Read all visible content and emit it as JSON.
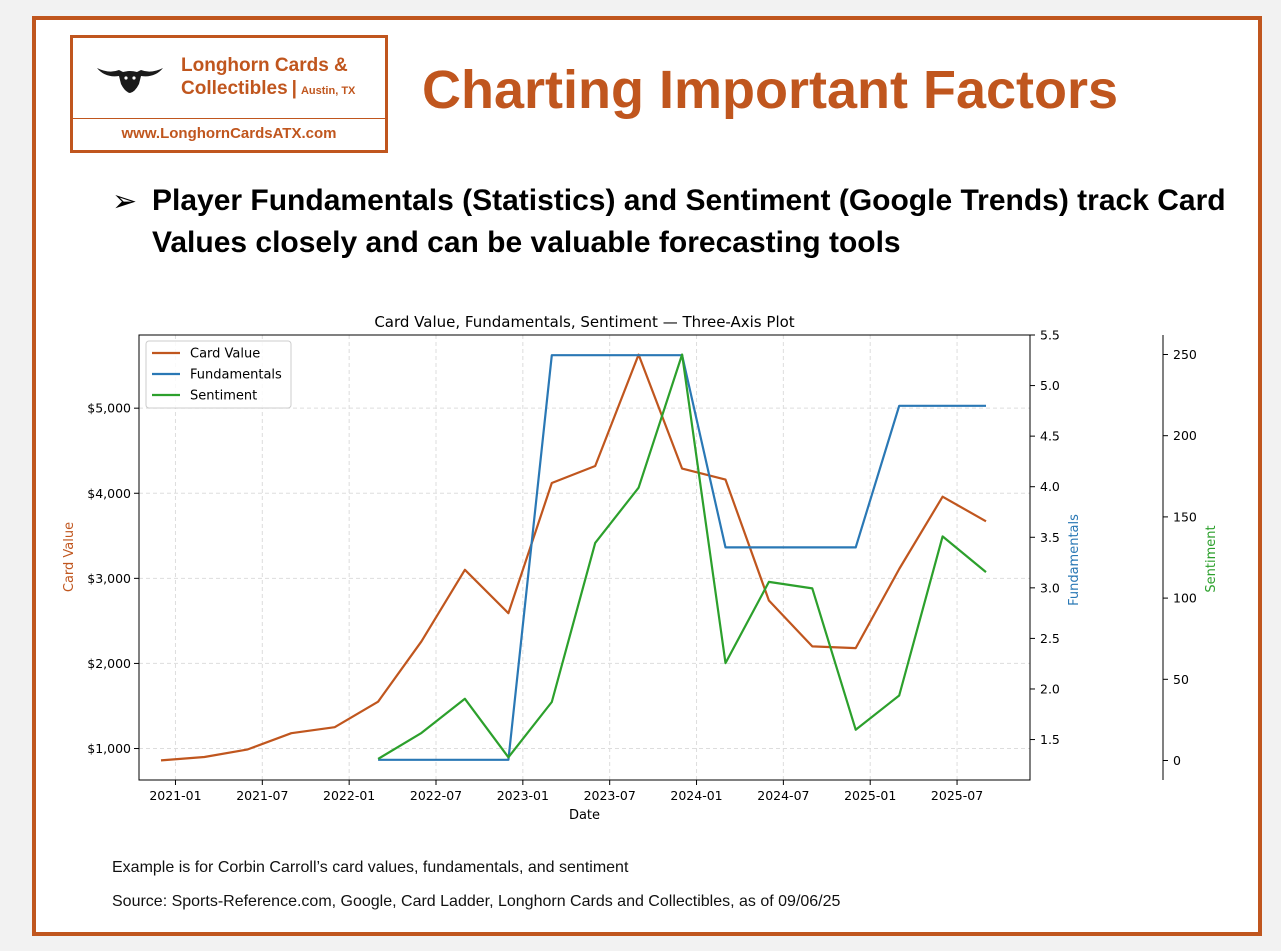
{
  "header": {
    "logo_name_line1": "Longhorn Cards &",
    "logo_name_line2": "Collectibles",
    "logo_separator": "|",
    "logo_city": "Austin, TX",
    "logo_url": "www.LonghornCardsATX.com",
    "logo_icon": "longhorn-steer-icon",
    "title": "Charting Important Factors"
  },
  "bullet": {
    "icon": "arrow-bullet-icon",
    "text": "Player Fundamentals (Statistics) and Sentiment (Google Trends) track Card Values closely and can be valuable forecasting tools"
  },
  "footer": {
    "example_note": "Example is for Corbin Carroll’s card values, fundamentals, and sentiment",
    "source_note": "Source:  Sports-Reference.com, Google, Card Ladder, Longhorn Cards and Collectibles, as of 09/06/25"
  },
  "colors": {
    "brand": "#c0561e",
    "card_value": "#c0561e",
    "fundamentals": "#2a78b5",
    "sentiment": "#2ca02c"
  },
  "chart_data": {
    "type": "line",
    "title": "Card Value, Fundamentals, Sentiment — Three-Axis Plot",
    "xlabel": "Date",
    "x_ticks": [
      "2021-01",
      "2021-07",
      "2022-01",
      "2022-07",
      "2023-01",
      "2023-07",
      "2024-01",
      "2024-07",
      "2025-01",
      "2025-07"
    ],
    "grid": true,
    "legend_position": "top-left",
    "axes": {
      "card_value": {
        "label": "Card Value",
        "side": "left",
        "ticks": [
          "$1,000",
          "$2,000",
          "$3,000",
          "$4,000",
          "$5,000"
        ],
        "tick_values": [
          1000,
          2000,
          3000,
          4000,
          5000
        ],
        "ylim": [
          630,
          5860
        ]
      },
      "fundamentals": {
        "label": "Fundamentals",
        "side": "right",
        "ticks": [
          "1.5",
          "2.0",
          "2.5",
          "3.0",
          "3.5",
          "4.0",
          "4.5",
          "5.0",
          "5.5"
        ],
        "tick_values": [
          1.5,
          2.0,
          2.5,
          3.0,
          3.5,
          4.0,
          4.5,
          5.0,
          5.5
        ],
        "ylim": [
          1.1,
          5.5
        ]
      },
      "sentiment": {
        "label": "Sentiment",
        "side": "right-outer",
        "ticks": [
          "0",
          "50",
          "100",
          "150",
          "200",
          "250"
        ],
        "tick_values": [
          0,
          50,
          100,
          150,
          200,
          250
        ],
        "ylim": [
          -12,
          262
        ]
      }
    },
    "series": [
      {
        "name": "Card Value",
        "axis": "card_value",
        "color": "#c0561e",
        "points": [
          [
            "2020-12",
            860
          ],
          [
            "2021-03",
            900
          ],
          [
            "2021-06",
            990
          ],
          [
            "2021-09",
            1180
          ],
          [
            "2021-12",
            1250
          ],
          [
            "2022-03",
            1550
          ],
          [
            "2022-06",
            2260
          ],
          [
            "2022-09",
            3100
          ],
          [
            "2022-12",
            2590
          ],
          [
            "2023-03",
            4120
          ],
          [
            "2023-06",
            4320
          ],
          [
            "2023-09",
            5630
          ],
          [
            "2023-12",
            4290
          ],
          [
            "2024-03",
            4160
          ],
          [
            "2024-06",
            2740
          ],
          [
            "2024-09",
            2200
          ],
          [
            "2024-12",
            2180
          ],
          [
            "2025-03",
            3110
          ],
          [
            "2025-06",
            3960
          ],
          [
            "2025-09",
            3670
          ]
        ]
      },
      {
        "name": "Fundamentals",
        "axis": "fundamentals",
        "color": "#2a78b5",
        "points": [
          [
            "2022-03",
            1.3
          ],
          [
            "2022-06",
            1.3
          ],
          [
            "2022-09",
            1.3
          ],
          [
            "2022-12",
            1.3
          ],
          [
            "2023-03",
            5.3
          ],
          [
            "2023-06",
            5.3
          ],
          [
            "2023-09",
            5.3
          ],
          [
            "2023-12",
            5.3
          ],
          [
            "2024-03",
            3.4
          ],
          [
            "2024-06",
            3.4
          ],
          [
            "2024-09",
            3.4
          ],
          [
            "2024-12",
            3.4
          ],
          [
            "2025-03",
            4.8
          ],
          [
            "2025-06",
            4.8
          ],
          [
            "2025-09",
            4.8
          ]
        ]
      },
      {
        "name": "Sentiment",
        "axis": "sentiment",
        "color": "#2ca02c",
        "points": [
          [
            "2022-03",
            1
          ],
          [
            "2022-06",
            17
          ],
          [
            "2022-09",
            38
          ],
          [
            "2022-12",
            2
          ],
          [
            "2023-03",
            36
          ],
          [
            "2023-06",
            134
          ],
          [
            "2023-09",
            168
          ],
          [
            "2023-12",
            250
          ],
          [
            "2024-03",
            60
          ],
          [
            "2024-06",
            110
          ],
          [
            "2024-09",
            106
          ],
          [
            "2024-12",
            19
          ],
          [
            "2025-03",
            40
          ],
          [
            "2025-06",
            138
          ],
          [
            "2025-09",
            116
          ]
        ]
      }
    ]
  }
}
